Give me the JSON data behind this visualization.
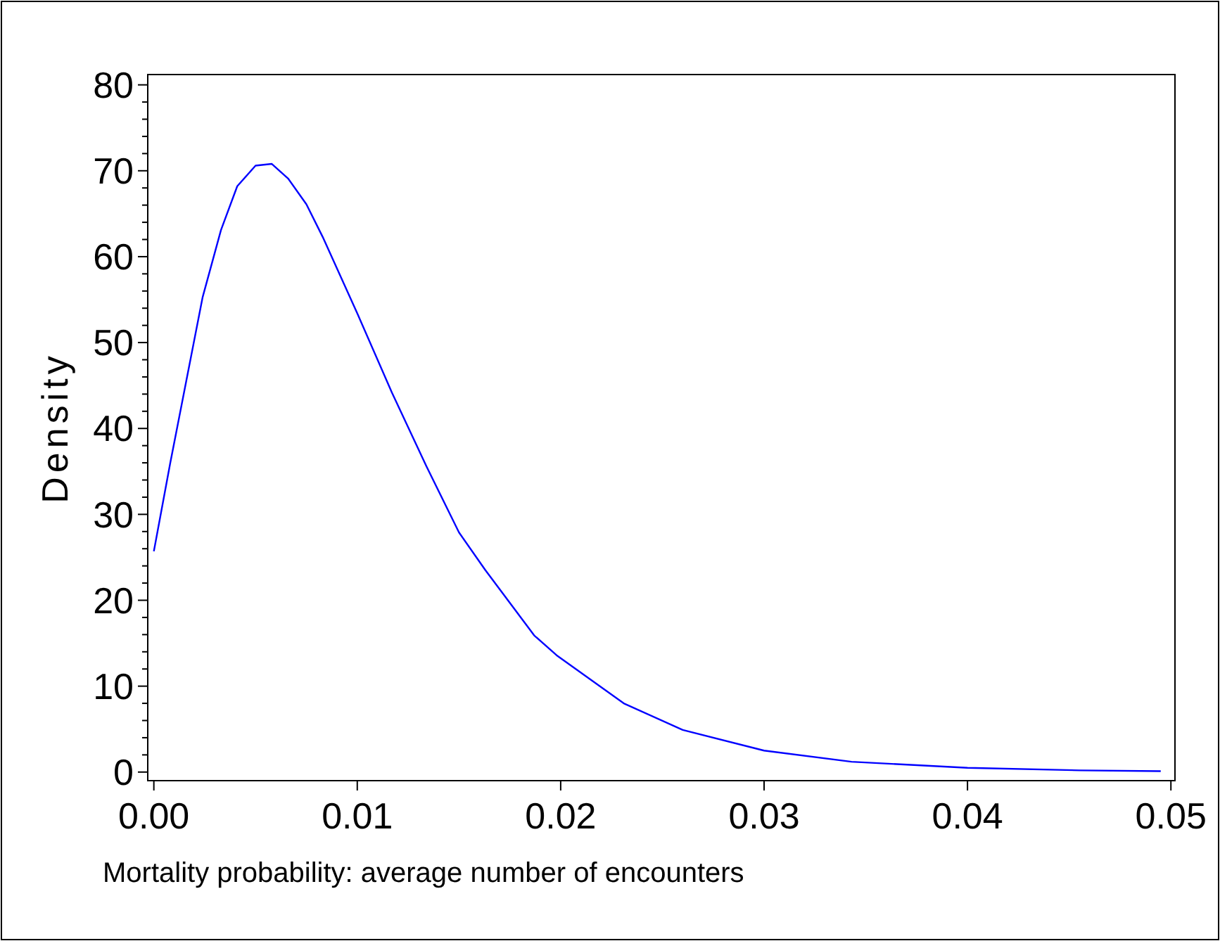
{
  "chart_data": {
    "type": "line",
    "xlabel": "Mortality probability: average number of encounters",
    "ylabel": "Density",
    "series": [
      {
        "color": "#0000ff",
        "x": [
          0,
          0.0008,
          0.0016,
          0.0024,
          0.0033,
          0.0041,
          0.005,
          0.0058,
          0.0066,
          0.0075,
          0.0083,
          0.01,
          0.0117,
          0.0134,
          0.015,
          0.0163,
          0.0187,
          0.0198,
          0.0231,
          0.026,
          0.03,
          0.0343,
          0.04,
          0.0455,
          0.0495
        ],
        "values": [
          25.7,
          35.9,
          45.6,
          55.3,
          63.1,
          68.2,
          70.6,
          70.8,
          69.1,
          66.1,
          62.3,
          53.4,
          44.2,
          35.6,
          27.9,
          23.5,
          15.9,
          13.6,
          8.0,
          4.9,
          2.5,
          1.2,
          0.5,
          0.2,
          0.1
        ]
      }
    ],
    "xlim": [
      -0.0003,
      0.0502
    ],
    "ylim": [
      -1,
      81.2
    ],
    "xticks": [
      {
        "value": 0,
        "label": "0.00"
      },
      {
        "value": 0.01,
        "label": "0.01"
      },
      {
        "value": 0.02,
        "label": "0.02"
      },
      {
        "value": 0.03,
        "label": "0.03"
      },
      {
        "value": 0.04,
        "label": "0.04"
      },
      {
        "value": 0.05,
        "label": "0.05"
      }
    ],
    "yticks": [
      0,
      {
        "value": 2,
        "label": null
      },
      {
        "value": 4,
        "label": null
      },
      {
        "value": 6,
        "label": null
      },
      {
        "value": 8,
        "label": null
      },
      10,
      {
        "value": 12,
        "label": null
      },
      {
        "value": 14,
        "label": null
      },
      {
        "value": 16,
        "label": null
      },
      {
        "value": 18,
        "label": null
      },
      20,
      {
        "value": 22,
        "label": null
      },
      {
        "value": 24,
        "label": null
      },
      {
        "value": 26,
        "label": null
      },
      {
        "value": 28,
        "label": null
      },
      30,
      {
        "value": 32,
        "label": null
      },
      {
        "value": 34,
        "label": null
      },
      {
        "value": 36,
        "label": null
      },
      {
        "value": 38,
        "label": null
      },
      40,
      {
        "value": 42,
        "label": null
      },
      {
        "value": 44,
        "label": null
      },
      {
        "value": 46,
        "label": null
      },
      {
        "value": 48,
        "label": null
      },
      50,
      {
        "value": 52,
        "label": null
      },
      {
        "value": 54,
        "label": null
      },
      {
        "value": 56,
        "label": null
      },
      {
        "value": 58,
        "label": null
      },
      60,
      {
        "value": 62,
        "label": null
      },
      {
        "value": 64,
        "label": null
      },
      {
        "value": 66,
        "label": null
      },
      {
        "value": 68,
        "label": null
      },
      70,
      {
        "value": 72,
        "label": null
      },
      {
        "value": 74,
        "label": null
      },
      {
        "value": 76,
        "label": null
      },
      {
        "value": 78,
        "label": null
      },
      80
    ],
    "grid": false,
    "marker": "none",
    "line_style": "solid"
  }
}
